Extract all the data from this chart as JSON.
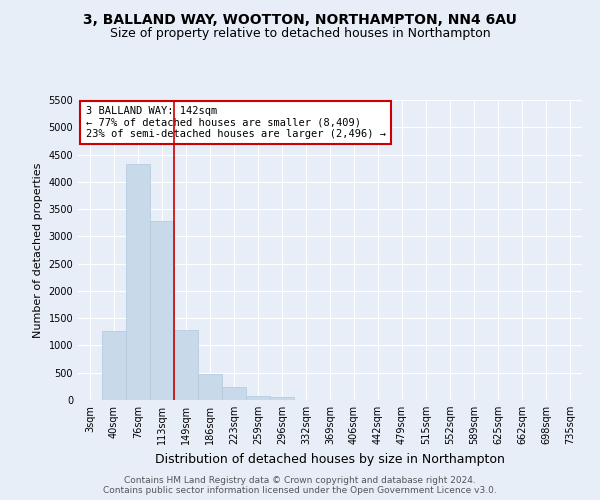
{
  "title1": "3, BALLAND WAY, WOOTTON, NORTHAMPTON, NN4 6AU",
  "title2": "Size of property relative to detached houses in Northampton",
  "xlabel": "Distribution of detached houses by size in Northampton",
  "ylabel": "Number of detached properties",
  "footer": "Contains HM Land Registry data © Crown copyright and database right 2024.\nContains public sector information licensed under the Open Government Licence v3.0.",
  "categories": [
    "3sqm",
    "40sqm",
    "76sqm",
    "113sqm",
    "149sqm",
    "186sqm",
    "223sqm",
    "259sqm",
    "296sqm",
    "332sqm",
    "369sqm",
    "406sqm",
    "442sqm",
    "479sqm",
    "515sqm",
    "552sqm",
    "589sqm",
    "625sqm",
    "662sqm",
    "698sqm",
    "735sqm"
  ],
  "values": [
    0,
    1270,
    4330,
    3290,
    1290,
    480,
    230,
    80,
    50,
    0,
    0,
    0,
    0,
    0,
    0,
    0,
    0,
    0,
    0,
    0,
    0
  ],
  "bar_color": "#c8daea",
  "bar_edge_color": "#b0c8de",
  "vline_x_index": 4,
  "vline_color": "#cc0000",
  "annotation_text": "3 BALLAND WAY: 142sqm\n← 77% of detached houses are smaller (8,409)\n23% of semi-detached houses are larger (2,496) →",
  "annotation_box_color": "#ffffff",
  "annotation_box_edge": "#cc0000",
  "ylim": [
    0,
    5500
  ],
  "yticks": [
    0,
    500,
    1000,
    1500,
    2000,
    2500,
    3000,
    3500,
    4000,
    4500,
    5000,
    5500
  ],
  "bg_color": "#e8eef8",
  "plot_bg_color": "#e8eef8",
  "grid_color": "#ffffff",
  "title_fontsize": 10,
  "subtitle_fontsize": 9,
  "tick_fontsize": 7,
  "ylabel_fontsize": 8,
  "xlabel_fontsize": 9,
  "footer_fontsize": 6.5
}
